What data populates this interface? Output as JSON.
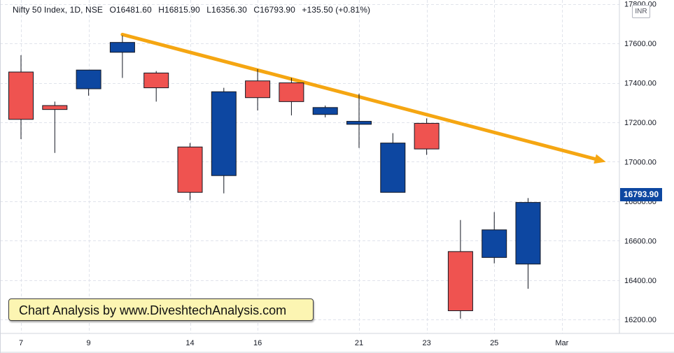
{
  "header": {
    "symbol": "Nifty 50 Index, 1D, NSE",
    "open": "O16481.60",
    "high": "H16815.90",
    "low": "L16356.30",
    "close": "C16793.90",
    "change": "+135.50 (+0.81%)"
  },
  "currency": "INR",
  "last_price_label": "16793.90",
  "watermark": "Chart Analysis by www.DiveshtechAnalysis.com",
  "colors": {
    "up": "#0d47a1",
    "down": "#ef5350",
    "trendline": "#f5a612",
    "price_tag": "#0d47a1",
    "watermark_bg": "#fcf5b2"
  },
  "chart_data": {
    "type": "candlestick",
    "ylim": [
      16130,
      17820
    ],
    "y_ticks": [
      16200,
      16400,
      16600,
      16800,
      17000,
      17200,
      17400,
      17600,
      17800
    ],
    "y_tick_labels": [
      "16200.00",
      "16400.00",
      "16600.00",
      "16800.00",
      "17000.00",
      "17200.00",
      "17400.00",
      "17600.00",
      "17800.00"
    ],
    "x_tick_labels": [
      {
        "label": "7",
        "index": 0
      },
      {
        "label": "9",
        "index": 2
      },
      {
        "label": "14",
        "index": 5
      },
      {
        "label": "16",
        "index": 7
      },
      {
        "label": "21",
        "index": 10
      },
      {
        "label": "23",
        "index": 12
      },
      {
        "label": "25",
        "index": 14
      },
      {
        "label": "Mar",
        "index": 16
      }
    ],
    "candles": [
      {
        "date": "7",
        "open": 17455,
        "high": 17540,
        "low": 17115,
        "close": 17215
      },
      {
        "date": "8",
        "open": 17285,
        "high": 17305,
        "low": 17045,
        "close": 17265
      },
      {
        "date": "9",
        "open": 17370,
        "high": 17465,
        "low": 17335,
        "close": 17465
      },
      {
        "date": "10",
        "open": 17555,
        "high": 17640,
        "low": 17425,
        "close": 17605
      },
      {
        "date": "11",
        "open": 17450,
        "high": 17460,
        "low": 17305,
        "close": 17375
      },
      {
        "date": "14",
        "open": 17075,
        "high": 17095,
        "low": 16805,
        "close": 16845
      },
      {
        "date": "15",
        "open": 16930,
        "high": 17375,
        "low": 16840,
        "close": 17355
      },
      {
        "date": "16",
        "open": 17410,
        "high": 17470,
        "low": 17260,
        "close": 17325
      },
      {
        "date": "17",
        "open": 17400,
        "high": 17425,
        "low": 17235,
        "close": 17305
      },
      {
        "date": "18",
        "open": 17240,
        "high": 17285,
        "low": 17225,
        "close": 17275
      },
      {
        "date": "21",
        "open": 17190,
        "high": 17345,
        "low": 17070,
        "close": 17205
      },
      {
        "date": "22",
        "open": 16845,
        "high": 17145,
        "low": 16845,
        "close": 17095
      },
      {
        "date": "23",
        "open": 17195,
        "high": 17220,
        "low": 17035,
        "close": 17065
      },
      {
        "date": "24",
        "open": 16545,
        "high": 16705,
        "low": 16205,
        "close": 16245
      },
      {
        "date": "25",
        "open": 16515,
        "high": 16745,
        "low": 16485,
        "close": 16655
      },
      {
        "date": "28",
        "open": 16481.6,
        "high": 16815.9,
        "low": 16356.3,
        "close": 16793.9
      }
    ],
    "trendline": {
      "start": {
        "index": 3,
        "value": 17645
      },
      "end": {
        "index": 17.3,
        "value": 17000
      }
    },
    "grid": true
  }
}
